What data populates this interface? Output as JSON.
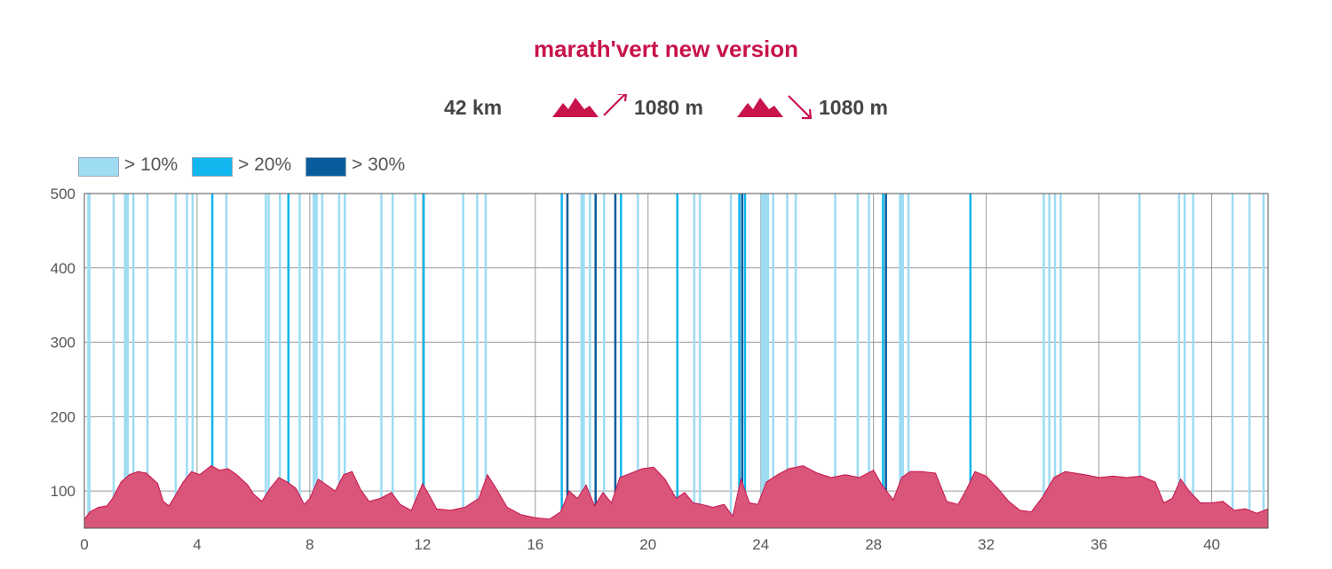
{
  "title": "marath'vert new version",
  "colors": {
    "title": "#c8134b",
    "profile_fill": "#d9557a",
    "profile_stroke": "#c8134b",
    "icon": "#c8134b",
    "slope_10": "#9ddcf3",
    "slope_20": "#12b6ef",
    "slope_30": "#0a5d9c",
    "grid": "#999999"
  },
  "stats": {
    "distance": "42 km",
    "ascent": "1080 m",
    "descent": "1080 m",
    "ascent_icon": "mountain-up-icon",
    "descent_icon": "mountain-down-icon"
  },
  "legend": [
    {
      "label": "> 10%",
      "color": "#9ddcf3"
    },
    {
      "label": "> 20%",
      "color": "#12b6ef"
    },
    {
      "label": "> 30%",
      "color": "#0a5d9c"
    }
  ],
  "chart_data": {
    "type": "area",
    "title": "marath'vert new version",
    "xlabel": "",
    "ylabel": "",
    "xlim": [
      0,
      42
    ],
    "ylim": [
      50,
      500
    ],
    "x_ticks": [
      0,
      4,
      8,
      12,
      16,
      20,
      24,
      28,
      32,
      36,
      40
    ],
    "y_ticks": [
      100,
      200,
      300,
      400,
      500
    ],
    "grid": true,
    "legend_position": "top-left",
    "series": [
      {
        "x": [
          0,
          0.2,
          0.5,
          0.8,
          1.0,
          1.3,
          1.6,
          1.9,
          2.2,
          2.6,
          2.8,
          3.0,
          3.2,
          3.5,
          3.8,
          4.1,
          4.5,
          4.8,
          5.1,
          5.4,
          5.8,
          6.0,
          6.3,
          6.6,
          6.9,
          7.2,
          7.5,
          7.8,
          8.0,
          8.3,
          8.6,
          8.9,
          9.2,
          9.5,
          9.8,
          10.1,
          10.5,
          10.9,
          11.2,
          11.6,
          12.0,
          12.3,
          12.5,
          13.0,
          13.5,
          14.0,
          14.3,
          14.6,
          15.0,
          15.5,
          16.0,
          16.5,
          16.9,
          17.2,
          17.5,
          17.8,
          18.1,
          18.4,
          18.7,
          19.0,
          19.4,
          19.8,
          20.2,
          20.6,
          21.0,
          21.3,
          21.6,
          21.9,
          22.3,
          22.7,
          23.0,
          23.3,
          23.6,
          23.9,
          24.2,
          24.6,
          25.0,
          25.5,
          26.0,
          26.5,
          27.0,
          27.5,
          28.0,
          28.3,
          28.7,
          29.0,
          29.3,
          29.7,
          30.2,
          30.6,
          31.0,
          31.3,
          31.6,
          32.0,
          32.4,
          32.8,
          33.2,
          33.6,
          34.0,
          34.4,
          34.8,
          35.5,
          36.0,
          36.5,
          37.0,
          37.5,
          38.0,
          38.3,
          38.6,
          38.9,
          39.2,
          39.6,
          40.0,
          40.4,
          40.8,
          41.2,
          41.6,
          42.0
        ],
        "y": [
          62,
          72,
          78,
          80,
          90,
          112,
          122,
          126,
          124,
          110,
          86,
          80,
          92,
          112,
          126,
          122,
          134,
          128,
          130,
          122,
          108,
          96,
          86,
          104,
          118,
          112,
          104,
          82,
          90,
          116,
          108,
          100,
          122,
          126,
          102,
          86,
          90,
          98,
          82,
          74,
          110,
          90,
          76,
          74,
          78,
          90,
          122,
          104,
          78,
          68,
          64,
          62,
          72,
          100,
          90,
          108,
          80,
          98,
          84,
          118,
          124,
          130,
          132,
          116,
          90,
          98,
          84,
          82,
          78,
          82,
          66,
          116,
          84,
          82,
          112,
          122,
          130,
          134,
          124,
          118,
          122,
          118,
          128,
          108,
          88,
          118,
          126,
          126,
          124,
          86,
          82,
          102,
          126,
          120,
          104,
          86,
          74,
          72,
          92,
          118,
          126,
          122,
          118,
          120,
          118,
          120,
          112,
          84,
          90,
          116,
          100,
          84,
          84,
          86,
          74,
          76,
          70,
          76
        ]
      }
    ],
    "slope_bands": [
      {
        "x": 0.1,
        "level": 1,
        "w": 0.12
      },
      {
        "x": 1.0,
        "level": 1
      },
      {
        "x": 1.4,
        "level": 1,
        "w": 0.18
      },
      {
        "x": 1.7,
        "level": 1
      },
      {
        "x": 2.2,
        "level": 1
      },
      {
        "x": 3.2,
        "level": 1
      },
      {
        "x": 3.6,
        "level": 1
      },
      {
        "x": 3.8,
        "level": 1
      },
      {
        "x": 4.5,
        "level": 2
      },
      {
        "x": 5.0,
        "level": 1
      },
      {
        "x": 6.4,
        "level": 1
      },
      {
        "x": 6.5,
        "level": 1
      },
      {
        "x": 6.9,
        "level": 1
      },
      {
        "x": 7.2,
        "level": 2
      },
      {
        "x": 7.6,
        "level": 1
      },
      {
        "x": 8.1,
        "level": 1,
        "w": 0.18
      },
      {
        "x": 8.4,
        "level": 1
      },
      {
        "x": 9.0,
        "level": 1
      },
      {
        "x": 9.2,
        "level": 1
      },
      {
        "x": 10.5,
        "level": 1
      },
      {
        "x": 10.9,
        "level": 1
      },
      {
        "x": 11.7,
        "level": 1
      },
      {
        "x": 12.0,
        "level": 2
      },
      {
        "x": 13.4,
        "level": 1
      },
      {
        "x": 13.9,
        "level": 1
      },
      {
        "x": 14.2,
        "level": 1
      },
      {
        "x": 16.9,
        "level": 2
      },
      {
        "x": 17.1,
        "level": 3
      },
      {
        "x": 17.6,
        "level": 1,
        "w": 0.16
      },
      {
        "x": 17.9,
        "level": 1
      },
      {
        "x": 18.1,
        "level": 3
      },
      {
        "x": 18.4,
        "level": 1
      },
      {
        "x": 18.8,
        "level": 3
      },
      {
        "x": 19.0,
        "level": 2
      },
      {
        "x": 19.6,
        "level": 1
      },
      {
        "x": 21.0,
        "level": 2
      },
      {
        "x": 21.6,
        "level": 1
      },
      {
        "x": 21.8,
        "level": 1
      },
      {
        "x": 22.9,
        "level": 1
      },
      {
        "x": 23.2,
        "level": 2
      },
      {
        "x": 23.3,
        "level": 3
      },
      {
        "x": 23.4,
        "level": 2
      },
      {
        "x": 24.0,
        "level": 1,
        "w": 0.3
      },
      {
        "x": 24.4,
        "level": 1
      },
      {
        "x": 24.9,
        "level": 1
      },
      {
        "x": 25.2,
        "level": 1
      },
      {
        "x": 26.6,
        "level": 1
      },
      {
        "x": 27.4,
        "level": 1
      },
      {
        "x": 27.8,
        "level": 1
      },
      {
        "x": 28.3,
        "level": 2
      },
      {
        "x": 28.4,
        "level": 3
      },
      {
        "x": 28.9,
        "level": 1,
        "w": 0.18
      },
      {
        "x": 29.2,
        "level": 1
      },
      {
        "x": 31.4,
        "level": 2
      },
      {
        "x": 34.0,
        "level": 1
      },
      {
        "x": 34.2,
        "level": 1
      },
      {
        "x": 34.4,
        "level": 1
      },
      {
        "x": 34.6,
        "level": 1
      },
      {
        "x": 37.4,
        "level": 1
      },
      {
        "x": 38.8,
        "level": 1
      },
      {
        "x": 39.0,
        "level": 1
      },
      {
        "x": 39.3,
        "level": 1
      },
      {
        "x": 40.7,
        "level": 1
      },
      {
        "x": 41.3,
        "level": 1
      },
      {
        "x": 41.8,
        "level": 1
      }
    ]
  }
}
